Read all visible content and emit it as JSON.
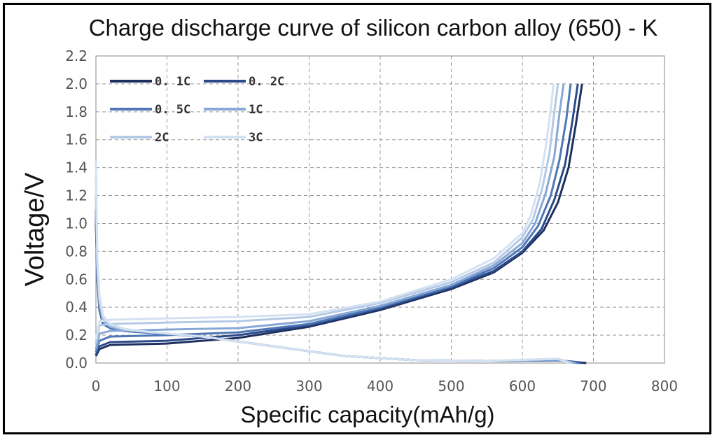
{
  "chart_data": {
    "type": "line",
    "title": "Charge discharge curve of silicon carbon alloy (650) - K",
    "xlabel": "Specific capacity(mAh/g)",
    "ylabel": "Voltage/V",
    "xlim": [
      0,
      800
    ],
    "ylim": [
      0,
      2.2
    ],
    "xticks": [
      "0",
      "100",
      "200",
      "300",
      "400",
      "500",
      "600",
      "700",
      "800"
    ],
    "yticks": [
      "0.0",
      "0.2",
      "0.4",
      "0.6",
      "0.8",
      "1.0",
      "1.2",
      "1.4",
      "1.6",
      "1.8",
      "2.0",
      "2.2"
    ],
    "grid": true,
    "legend_position": "top-left",
    "series": [
      {
        "name": "0. 1C",
        "color": "#1d2f5e",
        "discharge": [
          [
            0,
            1.0
          ],
          [
            2,
            0.6
          ],
          [
            5,
            0.38
          ],
          [
            10,
            0.28
          ],
          [
            20,
            0.25
          ],
          [
            40,
            0.23
          ],
          [
            80,
            0.215
          ],
          [
            150,
            0.19
          ],
          [
            250,
            0.12
          ],
          [
            350,
            0.05
          ],
          [
            450,
            0.02
          ],
          [
            550,
            0.015
          ],
          [
            650,
            0.02
          ],
          [
            690,
            0.0
          ]
        ],
        "charge": [
          [
            0,
            0.05
          ],
          [
            5,
            0.1
          ],
          [
            20,
            0.13
          ],
          [
            100,
            0.14
          ],
          [
            200,
            0.18
          ],
          [
            300,
            0.26
          ],
          [
            400,
            0.38
          ],
          [
            500,
            0.53
          ],
          [
            560,
            0.65
          ],
          [
            600,
            0.79
          ],
          [
            630,
            0.95
          ],
          [
            650,
            1.15
          ],
          [
            665,
            1.4
          ],
          [
            675,
            1.7
          ],
          [
            684,
            2.0
          ]
        ]
      },
      {
        "name": "0. 2C",
        "color": "#2c4a8a",
        "discharge": [
          [
            0,
            1.05
          ],
          [
            2,
            0.6
          ],
          [
            5,
            0.38
          ],
          [
            10,
            0.28
          ],
          [
            20,
            0.25
          ],
          [
            40,
            0.23
          ],
          [
            80,
            0.215
          ],
          [
            150,
            0.19
          ],
          [
            250,
            0.12
          ],
          [
            350,
            0.05
          ],
          [
            450,
            0.02
          ],
          [
            550,
            0.015
          ],
          [
            650,
            0.02
          ],
          [
            685,
            0.0
          ]
        ],
        "charge": [
          [
            0,
            0.06
          ],
          [
            5,
            0.12
          ],
          [
            20,
            0.15
          ],
          [
            100,
            0.16
          ],
          [
            200,
            0.2
          ],
          [
            300,
            0.27
          ],
          [
            400,
            0.39
          ],
          [
            500,
            0.54
          ],
          [
            560,
            0.66
          ],
          [
            600,
            0.8
          ],
          [
            627,
            0.96
          ],
          [
            645,
            1.17
          ],
          [
            660,
            1.42
          ],
          [
            670,
            1.72
          ],
          [
            678,
            2.0
          ]
        ]
      },
      {
        "name": "0. 5C",
        "color": "#4f77b6",
        "discharge": [
          [
            0,
            1.1
          ],
          [
            2,
            0.62
          ],
          [
            5,
            0.4
          ],
          [
            10,
            0.29
          ],
          [
            20,
            0.25
          ],
          [
            40,
            0.23
          ],
          [
            80,
            0.215
          ],
          [
            150,
            0.19
          ],
          [
            250,
            0.12
          ],
          [
            350,
            0.05
          ],
          [
            450,
            0.02
          ],
          [
            550,
            0.015
          ],
          [
            650,
            0.02
          ],
          [
            680,
            0.0
          ]
        ],
        "charge": [
          [
            0,
            0.08
          ],
          [
            5,
            0.16
          ],
          [
            20,
            0.19
          ],
          [
            100,
            0.2
          ],
          [
            200,
            0.22
          ],
          [
            300,
            0.28
          ],
          [
            400,
            0.4
          ],
          [
            500,
            0.55
          ],
          [
            560,
            0.68
          ],
          [
            600,
            0.83
          ],
          [
            622,
            0.98
          ],
          [
            640,
            1.2
          ],
          [
            652,
            1.45
          ],
          [
            662,
            1.75
          ],
          [
            668,
            2.0
          ]
        ]
      },
      {
        "name": "1C",
        "color": "#87a8d6",
        "discharge": [
          [
            0,
            1.2
          ],
          [
            2,
            0.65
          ],
          [
            5,
            0.42
          ],
          [
            10,
            0.3
          ],
          [
            20,
            0.26
          ],
          [
            40,
            0.235
          ],
          [
            80,
            0.22
          ],
          [
            150,
            0.19
          ],
          [
            250,
            0.12
          ],
          [
            350,
            0.05
          ],
          [
            450,
            0.02
          ],
          [
            550,
            0.015
          ],
          [
            650,
            0.025
          ],
          [
            675,
            0.0
          ]
        ],
        "charge": [
          [
            0,
            0.1
          ],
          [
            5,
            0.21
          ],
          [
            20,
            0.23
          ],
          [
            100,
            0.24
          ],
          [
            200,
            0.25
          ],
          [
            300,
            0.3
          ],
          [
            400,
            0.41
          ],
          [
            500,
            0.56
          ],
          [
            560,
            0.7
          ],
          [
            600,
            0.86
          ],
          [
            618,
            1.0
          ],
          [
            633,
            1.22
          ],
          [
            645,
            1.48
          ],
          [
            652,
            1.78
          ],
          [
            658,
            2.0
          ]
        ]
      },
      {
        "name": "2C",
        "color": "#b4c9e6",
        "discharge": [
          [
            0,
            1.35
          ],
          [
            2,
            0.7
          ],
          [
            5,
            0.45
          ],
          [
            10,
            0.32
          ],
          [
            20,
            0.27
          ],
          [
            40,
            0.24
          ],
          [
            80,
            0.22
          ],
          [
            150,
            0.19
          ],
          [
            250,
            0.12
          ],
          [
            350,
            0.05
          ],
          [
            450,
            0.02
          ],
          [
            550,
            0.015
          ],
          [
            650,
            0.03
          ],
          [
            670,
            0.0
          ]
        ],
        "charge": [
          [
            0,
            0.14
          ],
          [
            5,
            0.27
          ],
          [
            20,
            0.28
          ],
          [
            100,
            0.29
          ],
          [
            200,
            0.3
          ],
          [
            300,
            0.33
          ],
          [
            400,
            0.43
          ],
          [
            500,
            0.58
          ],
          [
            560,
            0.72
          ],
          [
            600,
            0.9
          ],
          [
            615,
            1.03
          ],
          [
            628,
            1.25
          ],
          [
            638,
            1.5
          ],
          [
            645,
            1.8
          ],
          [
            650,
            2.0
          ]
        ]
      },
      {
        "name": "3C",
        "color": "#d3e1f1",
        "discharge": [
          [
            0,
            1.45
          ],
          [
            2,
            0.75
          ],
          [
            5,
            0.48
          ],
          [
            10,
            0.34
          ],
          [
            20,
            0.28
          ],
          [
            40,
            0.245
          ],
          [
            80,
            0.22
          ],
          [
            150,
            0.19
          ],
          [
            250,
            0.12
          ],
          [
            350,
            0.05
          ],
          [
            450,
            0.02
          ],
          [
            550,
            0.015
          ],
          [
            650,
            0.03
          ],
          [
            665,
            0.0
          ]
        ],
        "charge": [
          [
            0,
            0.17
          ],
          [
            5,
            0.3
          ],
          [
            20,
            0.31
          ],
          [
            100,
            0.32
          ],
          [
            200,
            0.33
          ],
          [
            300,
            0.35
          ],
          [
            400,
            0.44
          ],
          [
            500,
            0.6
          ],
          [
            560,
            0.75
          ],
          [
            600,
            0.93
          ],
          [
            612,
            1.06
          ],
          [
            624,
            1.28
          ],
          [
            633,
            1.55
          ],
          [
            640,
            1.82
          ],
          [
            644,
            2.0
          ]
        ]
      }
    ]
  }
}
